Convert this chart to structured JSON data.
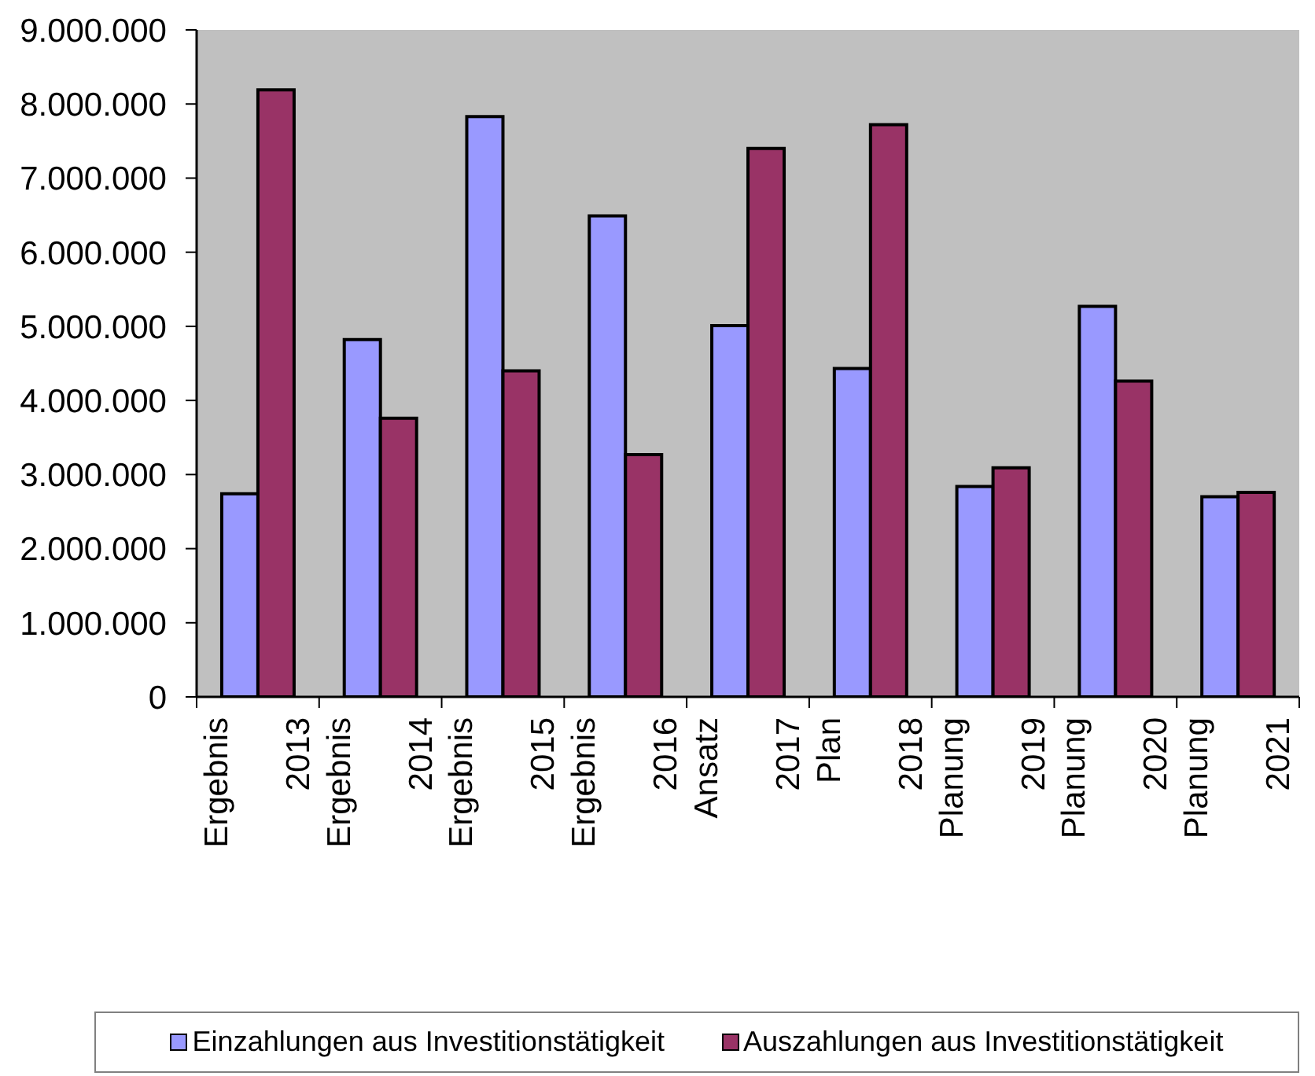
{
  "chart_data": {
    "type": "bar",
    "categories": [
      "Ergebnis 2013",
      "Ergebnis 2014",
      "Ergebnis 2015",
      "Ergebnis 2016",
      "Ansatz 2017",
      "Plan 2018",
      "Planung 2019",
      "Planung 2020",
      "Planung 2021"
    ],
    "series": [
      {
        "name": "Einzahlungen aus Investitionstätigkeit",
        "color": "#9999ff",
        "values": [
          2740000,
          4820000,
          7830000,
          6490000,
          5010000,
          4430000,
          2840000,
          5270000,
          2700000
        ]
      },
      {
        "name": "Auszahlungen aus Investitionstätigkeit",
        "color": "#993366",
        "values": [
          8190000,
          3760000,
          4400000,
          3270000,
          7400000,
          7720000,
          3090000,
          4260000,
          2760000
        ]
      }
    ],
    "ylim": [
      0,
      9000000
    ],
    "yticks": [
      0,
      {
        "value": 1000000,
        "label": "1.000.000"
      },
      {
        "value": 2000000,
        "label": "2.000.000"
      },
      {
        "value": 3000000,
        "label": "3.000.000"
      },
      {
        "value": 4000000,
        "label": "4.000.000"
      },
      {
        "value": 5000000,
        "label": "5.000.000"
      },
      {
        "value": 6000000,
        "label": "6.000.000"
      },
      {
        "value": 7000000,
        "label": "7.000.000"
      },
      {
        "value": 8000000,
        "label": "8.000.000"
      },
      {
        "value": 9000000,
        "label": "9.000.000"
      }
    ],
    "grid": false,
    "legend": "bottom"
  }
}
